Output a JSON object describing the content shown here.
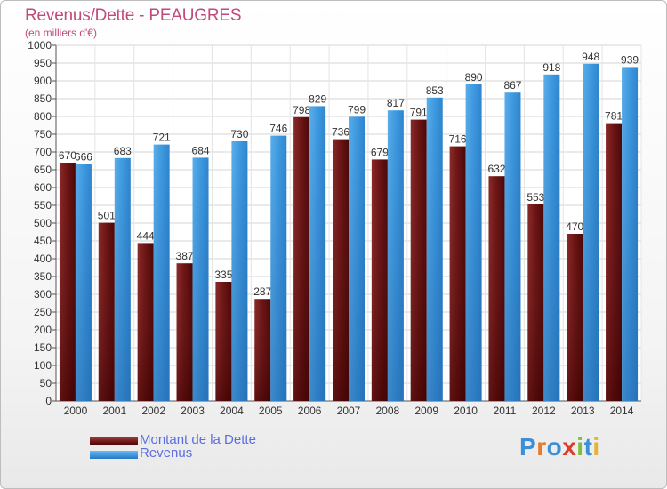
{
  "header": {
    "title": "Revenus/Dette - PEAUGRES",
    "subtitle": "(en milliers d'€)"
  },
  "legend": {
    "items": [
      {
        "label": "Montant de la Dette",
        "color": "#6b1212"
      },
      {
        "label": "Revenus",
        "color": "#3a95dd"
      }
    ]
  },
  "logo": {
    "text": "Proxiti",
    "letters": [
      {
        "char": "P",
        "color": "#3b8fd8"
      },
      {
        "char": "r",
        "color": "#e8792b"
      },
      {
        "char": "o",
        "color": "#3b8fd8"
      },
      {
        "char": "x",
        "color": "#e03a2a"
      },
      {
        "char": "i",
        "color": "#7bbf3a"
      },
      {
        "char": "t",
        "color": "#3b8fd8"
      },
      {
        "char": "i",
        "color": "#e8b22b"
      }
    ]
  },
  "chart_data": {
    "type": "bar",
    "title": "Revenus/Dette - PEAUGRES",
    "subtitle": "(en milliers d'€)",
    "categories": [
      "2000",
      "2001",
      "2002",
      "2003",
      "2004",
      "2005",
      "2006",
      "2007",
      "2008",
      "2009",
      "2010",
      "2011",
      "2012",
      "2013",
      "2014"
    ],
    "series": [
      {
        "name": "Montant de la Dette",
        "color": "#6b1212",
        "values": [
          670,
          501,
          444,
          387,
          335,
          287,
          798,
          736,
          679,
          791,
          716,
          632,
          553,
          470,
          781
        ],
        "labels": [
          "670",
          "501",
          "444",
          "387",
          "335",
          "287",
          "798",
          "736",
          "679",
          "791",
          "716",
          "632",
          "553",
          "470",
          "781"
        ]
      },
      {
        "name": "Revenus",
        "color": "#3a95dd",
        "values": [
          666,
          683,
          721,
          684,
          730,
          746,
          829,
          799,
          817,
          853,
          890,
          867,
          918,
          948,
          939
        ],
        "labels": [
          "666",
          "683",
          "721",
          "684",
          "730",
          "746",
          "829",
          "799",
          "817",
          "853",
          "890",
          "867",
          "918",
          "948",
          "939"
        ]
      }
    ],
    "ylim": [
      0,
      1000
    ],
    "yticks": [
      0,
      50,
      100,
      150,
      200,
      250,
      300,
      350,
      400,
      450,
      500,
      550,
      600,
      650,
      700,
      750,
      800,
      850,
      900,
      950,
      1000
    ],
    "ytick_labels": [
      "0",
      "50",
      "100",
      "150",
      "200",
      "250",
      "300",
      "350",
      "400",
      "450",
      "500",
      "550",
      "600",
      "650",
      "700",
      "750",
      "800",
      "850",
      "900",
      "950",
      "1000"
    ],
    "grid": true,
    "legend_position": "bottom-left"
  }
}
